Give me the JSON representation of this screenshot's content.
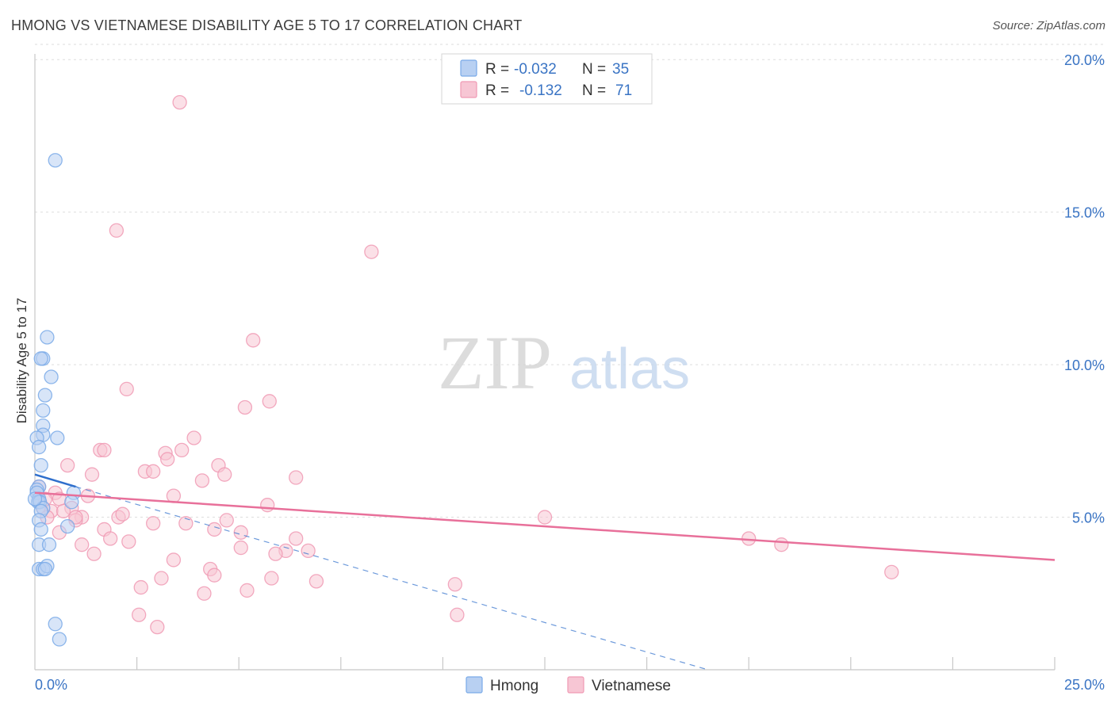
{
  "title": "HMONG VS VIETNAMESE DISABILITY AGE 5 TO 17 CORRELATION CHART",
  "source": "Source: ZipAtlas.com",
  "watermark": {
    "zip": "ZIP",
    "atlas": "atlas"
  },
  "colors": {
    "hmong": "#7aaae8",
    "hmong_fill": "#b8d0f2",
    "hmong_line": "#2f6fcc",
    "vietnamese": "#f09ab4",
    "vietnamese_fill": "#f7c6d4",
    "vietnamese_line": "#e8709a",
    "accent_text": "#3a74c4"
  },
  "legend": {
    "hmong": {
      "r_label": "R =",
      "r_value": "-0.032",
      "n_label": "N =",
      "n_value": "35"
    },
    "vietnamese": {
      "r_label": "R =",
      "r_value": "-0.132",
      "n_label": "N =",
      "n_value": "71"
    }
  },
  "chart_data": {
    "type": "scatter",
    "title": "HMONG VS VIETNAMESE DISABILITY AGE 5 TO 17 CORRELATION CHART",
    "xlabel": "",
    "ylabel": "Disability Age 5 to 17",
    "xlim": [
      0,
      25
    ],
    "ylim": [
      0,
      20.5
    ],
    "x_tick_labels": [
      "0.0%",
      "25.0%"
    ],
    "y_ticks": [
      5,
      10,
      15,
      20
    ],
    "y_tick_labels": [
      "5.0%",
      "10.0%",
      "15.0%",
      "20.0%"
    ],
    "x_minor_ticks": [
      2.5,
      5,
      7.5,
      10,
      12.5,
      15,
      17.5,
      20,
      22.5,
      25
    ],
    "grid": true,
    "legend_position": "bottom-center",
    "series": [
      {
        "name": "Hmong",
        "r": -0.032,
        "n": 35,
        "trend_solid": [
          [
            0,
            6.4
          ],
          [
            1.0,
            6.0
          ]
        ],
        "trend_dashed": [
          [
            1.0,
            6.0
          ],
          [
            16.5,
            0
          ]
        ],
        "points": [
          [
            0.5,
            16.7
          ],
          [
            0.3,
            10.9
          ],
          [
            0.2,
            10.2
          ],
          [
            0.15,
            10.2
          ],
          [
            0.4,
            9.6
          ],
          [
            0.25,
            9.0
          ],
          [
            0.2,
            8.5
          ],
          [
            0.2,
            8.0
          ],
          [
            0.2,
            7.7
          ],
          [
            0.05,
            7.6
          ],
          [
            0.55,
            7.6
          ],
          [
            0.1,
            7.3
          ],
          [
            0.15,
            6.7
          ],
          [
            0.1,
            6.0
          ],
          [
            0.05,
            5.9
          ],
          [
            0.05,
            5.8
          ],
          [
            0.1,
            5.6
          ],
          [
            0.08,
            5.5
          ],
          [
            0.12,
            5.5
          ],
          [
            0.95,
            5.8
          ],
          [
            0.9,
            5.5
          ],
          [
            0.2,
            5.3
          ],
          [
            0.15,
            5.2
          ],
          [
            0.1,
            4.9
          ],
          [
            0.8,
            4.7
          ],
          [
            0.15,
            4.6
          ],
          [
            0.1,
            4.1
          ],
          [
            0.35,
            4.1
          ],
          [
            0.1,
            3.3
          ],
          [
            0.2,
            3.3
          ],
          [
            0.3,
            3.4
          ],
          [
            0.25,
            3.3
          ],
          [
            0.5,
            1.5
          ],
          [
            0.6,
            1.0
          ],
          [
            0.0,
            5.6
          ]
        ]
      },
      {
        "name": "Vietnamese",
        "r": -0.132,
        "n": 71,
        "trend_solid": [
          [
            0,
            5.8
          ],
          [
            25,
            3.6
          ]
        ],
        "points": [
          [
            3.55,
            18.6
          ],
          [
            2.0,
            14.4
          ],
          [
            8.25,
            13.7
          ],
          [
            5.35,
            10.8
          ],
          [
            2.25,
            9.2
          ],
          [
            5.75,
            8.8
          ],
          [
            5.15,
            8.6
          ],
          [
            3.9,
            7.6
          ],
          [
            1.6,
            7.2
          ],
          [
            1.7,
            7.2
          ],
          [
            3.6,
            7.2
          ],
          [
            3.2,
            7.1
          ],
          [
            3.25,
            6.9
          ],
          [
            0.8,
            6.7
          ],
          [
            4.5,
            6.7
          ],
          [
            2.7,
            6.5
          ],
          [
            2.9,
            6.5
          ],
          [
            1.4,
            6.4
          ],
          [
            4.65,
            6.4
          ],
          [
            4.1,
            6.2
          ],
          [
            6.4,
            6.3
          ],
          [
            0.1,
            6.0
          ],
          [
            0.5,
            5.8
          ],
          [
            0.25,
            5.6
          ],
          [
            1.3,
            5.7
          ],
          [
            3.4,
            5.7
          ],
          [
            0.6,
            5.6
          ],
          [
            0.9,
            5.3
          ],
          [
            5.7,
            5.4
          ],
          [
            0.2,
            5.3
          ],
          [
            0.4,
            5.2
          ],
          [
            1.15,
            5.0
          ],
          [
            1.0,
            4.9
          ],
          [
            2.05,
            5.0
          ],
          [
            2.15,
            5.1
          ],
          [
            0.3,
            5.0
          ],
          [
            4.7,
            4.9
          ],
          [
            12.5,
            5.0
          ],
          [
            2.9,
            4.8
          ],
          [
            3.7,
            4.8
          ],
          [
            1.7,
            4.6
          ],
          [
            4.4,
            4.6
          ],
          [
            0.6,
            4.5
          ],
          [
            5.05,
            4.5
          ],
          [
            1.85,
            4.3
          ],
          [
            2.3,
            4.2
          ],
          [
            6.4,
            4.3
          ],
          [
            17.5,
            4.3
          ],
          [
            1.15,
            4.1
          ],
          [
            5.05,
            4.0
          ],
          [
            18.3,
            4.1
          ],
          [
            6.15,
            3.9
          ],
          [
            6.7,
            3.9
          ],
          [
            5.9,
            3.8
          ],
          [
            1.45,
            3.8
          ],
          [
            3.4,
            3.6
          ],
          [
            4.3,
            3.3
          ],
          [
            4.4,
            3.1
          ],
          [
            3.1,
            3.0
          ],
          [
            5.8,
            3.0
          ],
          [
            21.0,
            3.2
          ],
          [
            10.3,
            2.8
          ],
          [
            2.6,
            2.7
          ],
          [
            6.9,
            2.9
          ],
          [
            5.2,
            2.6
          ],
          [
            4.15,
            2.5
          ],
          [
            10.35,
            1.8
          ],
          [
            2.55,
            1.8
          ],
          [
            3.0,
            1.4
          ],
          [
            1.0,
            5.0
          ],
          [
            0.7,
            5.2
          ]
        ]
      }
    ]
  }
}
